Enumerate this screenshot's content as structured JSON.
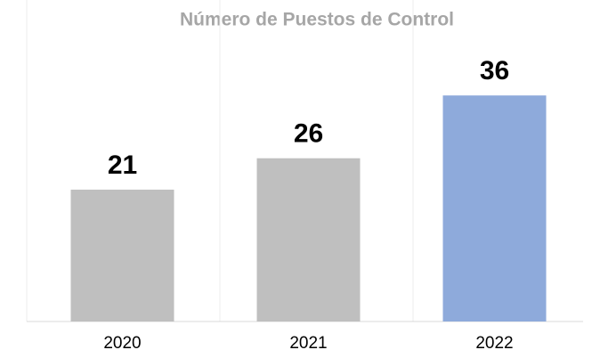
{
  "chart_data": {
    "type": "bar",
    "title": "Número de Puestos de Control",
    "categories": [
      "2020",
      "2021",
      "2022"
    ],
    "values": [
      21,
      26,
      36
    ],
    "colors": [
      "#bfbfbf",
      "#bfbfbf",
      "#8eaadb"
    ],
    "ylim": [
      0,
      40
    ],
    "grid": true
  }
}
